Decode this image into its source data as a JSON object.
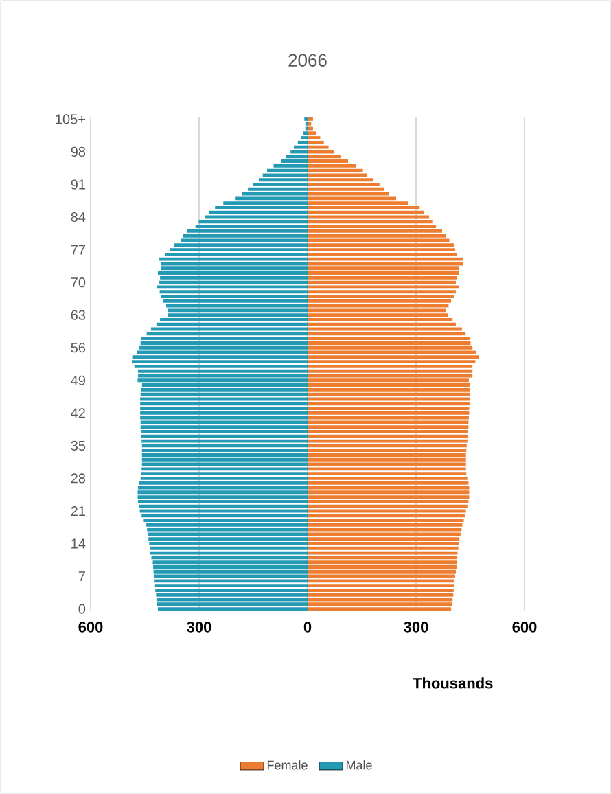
{
  "chart_data": {
    "type": "bar",
    "orientation": "horizontal",
    "title": "2066",
    "xlabel": "Thousands",
    "categories": [
      "105+",
      null,
      null,
      null,
      null,
      null,
      null,
      "98",
      null,
      null,
      null,
      null,
      null,
      null,
      "91",
      null,
      null,
      null,
      null,
      null,
      null,
      "84",
      null,
      null,
      null,
      null,
      null,
      null,
      "77",
      null,
      null,
      null,
      null,
      null,
      null,
      "70",
      null,
      null,
      null,
      null,
      null,
      null,
      "63",
      null,
      null,
      null,
      null,
      null,
      null,
      "56",
      null,
      null,
      null,
      null,
      null,
      null,
      "49",
      null,
      null,
      null,
      null,
      null,
      null,
      "42",
      null,
      null,
      null,
      null,
      null,
      null,
      "35",
      null,
      null,
      null,
      null,
      null,
      null,
      "28",
      null,
      null,
      null,
      null,
      null,
      null,
      "21",
      null,
      null,
      null,
      null,
      null,
      null,
      "14",
      null,
      null,
      null,
      null,
      null,
      null,
      "7",
      null,
      null,
      null,
      null,
      null,
      null,
      "0"
    ],
    "series": [
      {
        "name": "Female",
        "color": "#ed7d31",
        "values": [
          15,
          10,
          15,
          23,
          35,
          45,
          58,
          74,
          91,
          112,
          135,
          153,
          164,
          182,
          199,
          212,
          226,
          245,
          278,
          310,
          323,
          336,
          345,
          355,
          372,
          382,
          392,
          405,
          408,
          413,
          429,
          431,
          419,
          419,
          413,
          410,
          419,
          410,
          406,
          397,
          390,
          383,
          388,
          401,
          410,
          427,
          437,
          449,
          451,
          456,
          465,
          473,
          464,
          456,
          456,
          456,
          446,
          449,
          449,
          449,
          448,
          448,
          447,
          447,
          446,
          445,
          445,
          444,
          443,
          442,
          440,
          439,
          438,
          438,
          438,
          438,
          439,
          442,
          445,
          447,
          447,
          447,
          445,
          442,
          438,
          436,
          432,
          428,
          426,
          423,
          420,
          418,
          417,
          415,
          414,
          413,
          412,
          410,
          408,
          406,
          405,
          404,
          403,
          401,
          399,
          397
        ]
      },
      {
        "name": "Male",
        "color": "#2399b4",
        "values": [
          -9,
          -6,
          -6,
          -13,
          -18,
          -27,
          -38,
          -47,
          -60,
          -73,
          -94,
          -112,
          -124,
          -135,
          -150,
          -165,
          -181,
          -199,
          -233,
          -256,
          -273,
          -283,
          -301,
          -310,
          -333,
          -344,
          -350,
          -369,
          -381,
          -395,
          -410,
          -406,
          -406,
          -414,
          -408,
          -410,
          -417,
          -409,
          -406,
          -400,
          -391,
          -387,
          -387,
          -408,
          -418,
          -433,
          -445,
          -460,
          -462,
          -465,
          -472,
          -483,
          -486,
          -479,
          -469,
          -469,
          -470,
          -458,
          -460,
          -462,
          -463,
          -463,
          -463,
          -463,
          -463,
          -462,
          -462,
          -461,
          -460,
          -459,
          -458,
          -458,
          -458,
          -458,
          -458,
          -459,
          -460,
          -462,
          -467,
          -469,
          -470,
          -470,
          -469,
          -467,
          -464,
          -459,
          -453,
          -446,
          -444,
          -442,
          -440,
          -438,
          -436,
          -435,
          -432,
          -428,
          -427,
          -426,
          -424,
          -423,
          -422,
          -421,
          -419,
          -418,
          -417,
          -414
        ]
      }
    ],
    "xlim": [
      -600,
      600
    ],
    "xticks": [
      {
        "value": -600,
        "label": "600"
      },
      {
        "value": -300,
        "label": "300"
      },
      0,
      300,
      {
        "value": 600,
        "label": "600"
      }
    ],
    "grid": "x",
    "legend": "bottom",
    "stacked": true
  }
}
